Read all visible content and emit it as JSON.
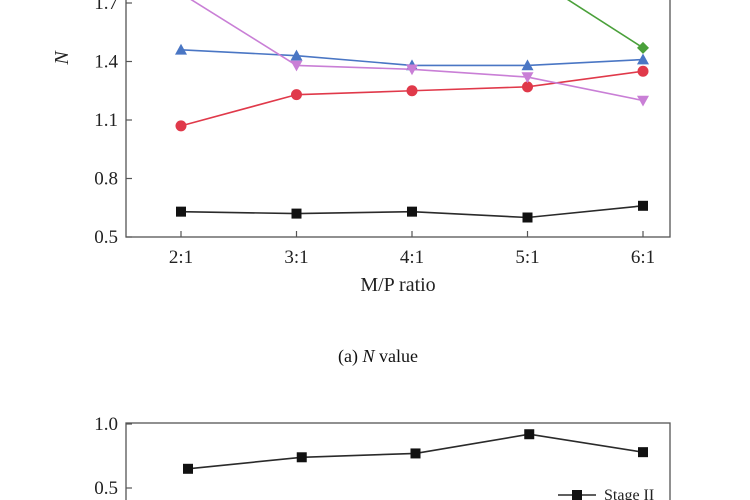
{
  "chart_data": [
    {
      "type": "line",
      "title": "",
      "xlabel": "M/P ratio",
      "ylabel": "N",
      "categories": [
        "2:1",
        "3:1",
        "4:1",
        "5:1",
        "6:1"
      ],
      "ylim": [
        0.5,
        1.7
      ],
      "yticks": [
        0.5,
        0.8,
        1.1,
        1.4,
        1.7
      ],
      "caption_prefix": "(a) ",
      "caption_italic": "N",
      "caption_suffix": " value",
      "series": [
        {
          "name": "black-square",
          "color": "#2a2a2a",
          "marker": "square",
          "values": [
            0.63,
            0.62,
            0.63,
            0.6,
            0.66
          ]
        },
        {
          "name": "red-circle",
          "color": "#e0394a",
          "marker": "circle",
          "values": [
            1.07,
            1.23,
            1.25,
            1.27,
            1.35
          ]
        },
        {
          "name": "blue-triangle",
          "color": "#4a76c4",
          "marker": "triangle-up",
          "values": [
            1.46,
            1.43,
            1.38,
            1.38,
            1.41
          ]
        },
        {
          "name": "violet-triangle-down",
          "color": "#c97fd6",
          "marker": "triangle-down",
          "values": [
            1.75,
            1.38,
            1.36,
            1.32,
            1.2
          ]
        },
        {
          "name": "green-diamond",
          "color": "#4aa03a",
          "marker": "diamond",
          "values": [
            null,
            null,
            null,
            1.85,
            1.47
          ]
        }
      ]
    },
    {
      "type": "line",
      "title": "",
      "xlabel": "",
      "ylabel": "",
      "categories": [
        "2:1",
        "3:1",
        "4:1",
        "5:1",
        "6:1"
      ],
      "ylim": [
        0.5,
        1.0
      ],
      "yticks": [
        0.5,
        1.0
      ],
      "series": [
        {
          "name": "Stage II",
          "color": "#2a2a2a",
          "marker": "square",
          "values": [
            0.65,
            0.74,
            0.77,
            0.92,
            0.78
          ]
        }
      ],
      "legend": {
        "entries": [
          "Stage II"
        ],
        "placement": "bottom-right"
      }
    }
  ]
}
